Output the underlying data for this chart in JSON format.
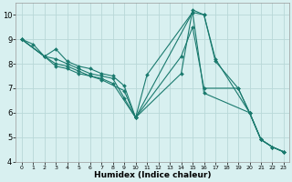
{
  "xlabel": "Humidex (Indice chaleur)",
  "ylabel": "",
  "xlim": [
    -0.5,
    23.5
  ],
  "ylim": [
    4,
    10.5
  ],
  "xticks": [
    0,
    1,
    2,
    3,
    4,
    5,
    6,
    7,
    8,
    9,
    10,
    11,
    12,
    13,
    14,
    15,
    16,
    17,
    18,
    19,
    20,
    21,
    22,
    23
  ],
  "yticks": [
    4,
    5,
    6,
    7,
    8,
    9,
    10
  ],
  "background_color": "#d8f0f0",
  "grid_color": "#b8d8d8",
  "line_color": "#1a7a6e",
  "lines": [
    {
      "x": [
        0,
        1,
        2,
        3,
        4,
        5,
        6,
        7,
        8,
        9,
        10,
        14,
        15,
        16,
        17,
        20,
        21,
        22,
        23
      ],
      "y": [
        9.0,
        8.8,
        8.3,
        8.2,
        8.0,
        7.8,
        7.6,
        7.5,
        7.4,
        6.6,
        5.8,
        7.6,
        10.2,
        10.0,
        8.2,
        6.0,
        4.9,
        4.6,
        4.4
      ]
    },
    {
      "x": [
        0,
        2,
        3,
        4,
        5,
        6,
        7,
        8,
        9,
        10,
        14,
        15,
        16,
        19,
        20,
        21,
        22,
        23
      ],
      "y": [
        9.0,
        8.3,
        8.6,
        8.1,
        7.9,
        7.8,
        7.6,
        7.5,
        7.1,
        5.8,
        8.3,
        9.5,
        7.0,
        7.0,
        6.0,
        4.9,
        4.6,
        4.4
      ]
    },
    {
      "x": [
        0,
        2,
        3,
        4,
        5,
        6,
        7,
        8,
        10,
        11,
        15,
        16,
        17,
        19,
        20,
        21,
        22,
        23
      ],
      "y": [
        9.0,
        8.3,
        8.0,
        7.9,
        7.7,
        7.5,
        7.4,
        7.2,
        5.8,
        7.55,
        10.1,
        10.0,
        8.1,
        7.0,
        6.0,
        4.9,
        4.6,
        4.4
      ]
    },
    {
      "x": [
        0,
        2,
        3,
        4,
        5,
        6,
        7,
        9,
        10,
        15,
        16,
        20,
        21,
        22,
        23
      ],
      "y": [
        9.0,
        8.3,
        7.9,
        7.8,
        7.6,
        7.5,
        7.35,
        6.9,
        5.8,
        10.1,
        6.8,
        6.0,
        4.9,
        4.6,
        4.4
      ]
    }
  ],
  "xtick_fontsize": 4.5,
  "ytick_fontsize": 6.0,
  "xlabel_fontsize": 6.5,
  "linewidth": 0.8,
  "markersize": 2.0
}
